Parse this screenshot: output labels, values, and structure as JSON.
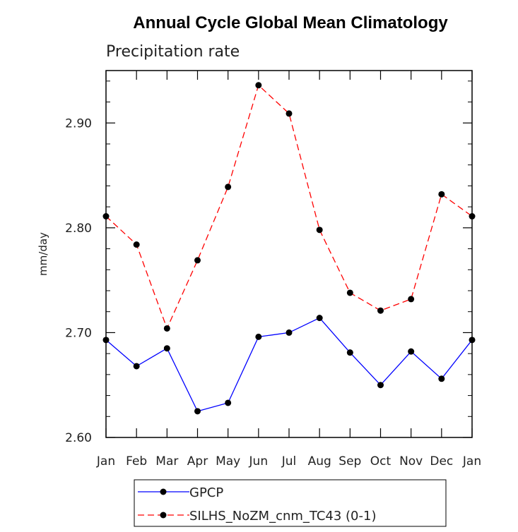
{
  "chart_data": {
    "type": "line",
    "title": "Annual Cycle Global Mean Climatology",
    "subtitle": "Precipitation rate",
    "ylabel": "mm/day",
    "xlabel": "",
    "categories": [
      "Jan",
      "Feb",
      "Mar",
      "Apr",
      "May",
      "Jun",
      "Jul",
      "Aug",
      "Sep",
      "Oct",
      "Nov",
      "Dec",
      "Jan"
    ],
    "yticks": [
      "2.60",
      "2.70",
      "2.80",
      "2.90"
    ],
    "ylim": [
      2.6,
      2.95
    ],
    "grid": false,
    "legend_position": "bottom",
    "series": [
      {
        "name": "GPCP",
        "color": "#0000ff",
        "dash": "solid",
        "values": [
          2.693,
          2.668,
          2.685,
          2.625,
          2.633,
          2.696,
          2.7,
          2.714,
          2.681,
          2.65,
          2.682,
          2.656,
          2.693
        ]
      },
      {
        "name": "SILHS_NoZM_cnm_TC43 (0-1)",
        "color": "#ff0000",
        "dash": "dashed",
        "values": [
          2.811,
          2.784,
          2.704,
          2.769,
          2.839,
          2.936,
          2.909,
          2.798,
          2.738,
          2.721,
          2.732,
          2.832,
          2.811
        ]
      }
    ]
  }
}
